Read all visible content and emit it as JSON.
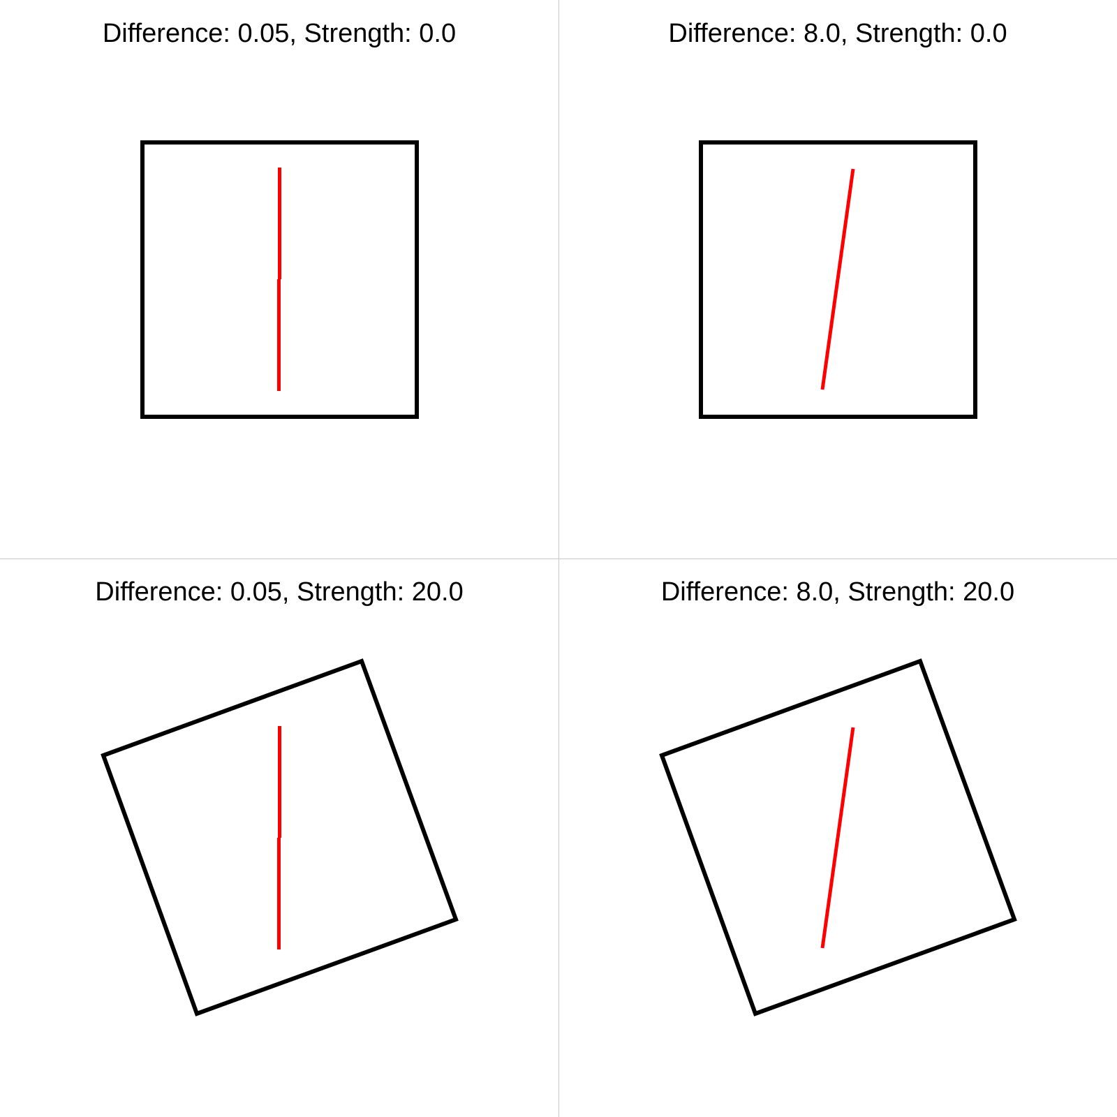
{
  "panels": [
    {
      "title": "Difference: 0.05, Strength: 0.0",
      "difference": 0.05,
      "strength": 0.0
    },
    {
      "title": "Difference: 8.0, Strength: 0.0",
      "difference": 8.0,
      "strength": 0.0
    },
    {
      "title": "Difference: 0.05, Strength: 20.0",
      "difference": 0.05,
      "strength": 20.0
    },
    {
      "title": "Difference: 8.0, Strength: 20.0",
      "difference": 8.0,
      "strength": 20.0
    }
  ],
  "colors": {
    "square": "#000000",
    "line": "#ff0000",
    "divider": "#c8c8c8",
    "background": "#ffffff"
  }
}
